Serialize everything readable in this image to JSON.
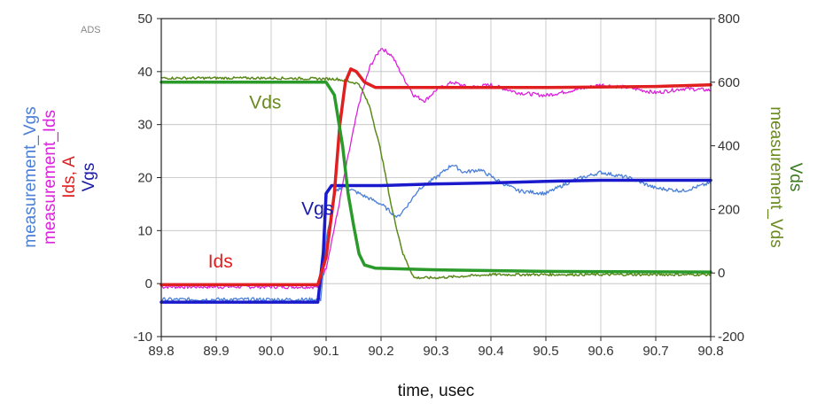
{
  "chart_data": {
    "type": "line",
    "watermark": "ADS",
    "xlabel": "time, usec",
    "xlim": [
      89.8,
      90.8
    ],
    "x_ticks": [
      "89.8",
      "89.9",
      "90.0",
      "90.1",
      "90.2",
      "90.3",
      "90.4",
      "90.5",
      "90.6",
      "90.7",
      "90.8"
    ],
    "ylim_left": [
      -10,
      50
    ],
    "y_ticks_left": [
      "-10",
      "0",
      "10",
      "20",
      "30",
      "40",
      "50"
    ],
    "ylim_right": [
      -200,
      800
    ],
    "y_ticks_right": [
      "-200",
      "0",
      "200",
      "400",
      "600",
      "800"
    ],
    "grid": true,
    "left_axis_labels": [
      {
        "text": "measurement_Vgs",
        "color": "#4a7fd8"
      },
      {
        "text": "measurement_Ids",
        "color": "#dd22dd"
      },
      {
        "text": "Ids, A",
        "color": "#e02020"
      },
      {
        "text": "Vgs",
        "color": "#1a1aa8"
      }
    ],
    "right_axis_labels": [
      {
        "text": "measurement_Vds",
        "color": "#6a8a1e"
      },
      {
        "text": "Vds",
        "color": "#3a7a1e"
      }
    ],
    "annotations": [
      {
        "text": "Vds",
        "color": "#6a8a1e",
        "x": 89.96,
        "y": 33
      },
      {
        "text": "Vgs",
        "color": "#1a1aa8",
        "x": 90.055,
        "y": 13
      },
      {
        "text": "Ids",
        "color": "#e02020",
        "x": 89.885,
        "y": 3
      }
    ],
    "series": [
      {
        "axis": "left",
        "color": "#dd22dd",
        "width": 1.3,
        "noise": 0.35,
        "points": [
          [
            89.8,
            -0.6
          ],
          [
            90.085,
            -0.6
          ],
          [
            90.1,
            3
          ],
          [
            90.12,
            13
          ],
          [
            90.14,
            24
          ],
          [
            90.16,
            34
          ],
          [
            90.18,
            41
          ],
          [
            90.2,
            44.5
          ],
          [
            90.22,
            43
          ],
          [
            90.24,
            39
          ],
          [
            90.26,
            35.5
          ],
          [
            90.28,
            34.5
          ],
          [
            90.3,
            36.5
          ],
          [
            90.33,
            38
          ],
          [
            90.36,
            37
          ],
          [
            90.4,
            37.5
          ],
          [
            90.45,
            36
          ],
          [
            90.5,
            35.5
          ],
          [
            90.55,
            36.5
          ],
          [
            90.6,
            37.5
          ],
          [
            90.65,
            37
          ],
          [
            90.7,
            36
          ],
          [
            90.75,
            36.8
          ],
          [
            90.8,
            36.5
          ]
        ]
      },
      {
        "axis": "left",
        "color": "#4a7fd8",
        "width": 1.3,
        "noise": 0.35,
        "points": [
          [
            89.8,
            -3
          ],
          [
            90.09,
            -3
          ],
          [
            90.1,
            8
          ],
          [
            90.115,
            17
          ],
          [
            90.13,
            18.5
          ],
          [
            90.16,
            17
          ],
          [
            90.2,
            15
          ],
          [
            90.23,
            12.5
          ],
          [
            90.25,
            15
          ],
          [
            90.27,
            18
          ],
          [
            90.3,
            20
          ],
          [
            90.33,
            22.5
          ],
          [
            90.35,
            21
          ],
          [
            90.38,
            21.5
          ],
          [
            90.42,
            19
          ],
          [
            90.45,
            17.5
          ],
          [
            90.5,
            17
          ],
          [
            90.55,
            19.5
          ],
          [
            90.6,
            21
          ],
          [
            90.65,
            20
          ],
          [
            90.7,
            18
          ],
          [
            90.75,
            17.5
          ],
          [
            90.8,
            19
          ]
        ]
      },
      {
        "axis": "right",
        "color": "#5a8a1a",
        "width": 1.5,
        "noise": 4,
        "points": [
          [
            89.8,
            613
          ],
          [
            90.0,
            613
          ],
          [
            90.12,
            610
          ],
          [
            90.16,
            595
          ],
          [
            90.18,
            520
          ],
          [
            90.2,
            380
          ],
          [
            90.22,
            200
          ],
          [
            90.24,
            60
          ],
          [
            90.26,
            -15
          ],
          [
            90.3,
            -15
          ],
          [
            90.4,
            -5
          ],
          [
            90.5,
            -5
          ],
          [
            90.6,
            -5
          ],
          [
            90.7,
            -5
          ],
          [
            90.8,
            -5
          ]
        ]
      },
      {
        "axis": "left",
        "color": "#1a1acc",
        "width": 3.5,
        "noise": 0,
        "points": [
          [
            89.8,
            -3.5
          ],
          [
            90.085,
            -3.5
          ],
          [
            90.095,
            6
          ],
          [
            90.1,
            17
          ],
          [
            90.11,
            18.5
          ],
          [
            90.2,
            18.5
          ],
          [
            90.3,
            18.8
          ],
          [
            90.4,
            19
          ],
          [
            90.5,
            19.3
          ],
          [
            90.6,
            19.5
          ],
          [
            90.7,
            19.5
          ],
          [
            90.8,
            19.5
          ]
        ]
      },
      {
        "axis": "left",
        "color": "#e02020",
        "width": 3.5,
        "noise": 0,
        "points": [
          [
            89.8,
            -0.2
          ],
          [
            90.085,
            -0.2
          ],
          [
            90.1,
            5
          ],
          [
            90.115,
            17
          ],
          [
            90.125,
            30
          ],
          [
            90.135,
            38
          ],
          [
            90.145,
            40.5
          ],
          [
            90.155,
            40
          ],
          [
            90.17,
            38
          ],
          [
            90.19,
            37
          ],
          [
            90.3,
            37
          ],
          [
            90.5,
            37
          ],
          [
            90.7,
            37.2
          ],
          [
            90.8,
            37.5
          ]
        ]
      },
      {
        "axis": "right",
        "color": "#2a9a2a",
        "width": 3.5,
        "noise": 0,
        "points": [
          [
            89.8,
            600
          ],
          [
            90.1,
            600
          ],
          [
            90.115,
            560
          ],
          [
            90.13,
            400
          ],
          [
            90.14,
            250
          ],
          [
            90.15,
            150
          ],
          [
            90.16,
            60
          ],
          [
            90.17,
            25
          ],
          [
            90.19,
            15
          ],
          [
            90.3,
            10
          ],
          [
            90.5,
            5
          ],
          [
            90.8,
            3
          ]
        ]
      }
    ]
  }
}
